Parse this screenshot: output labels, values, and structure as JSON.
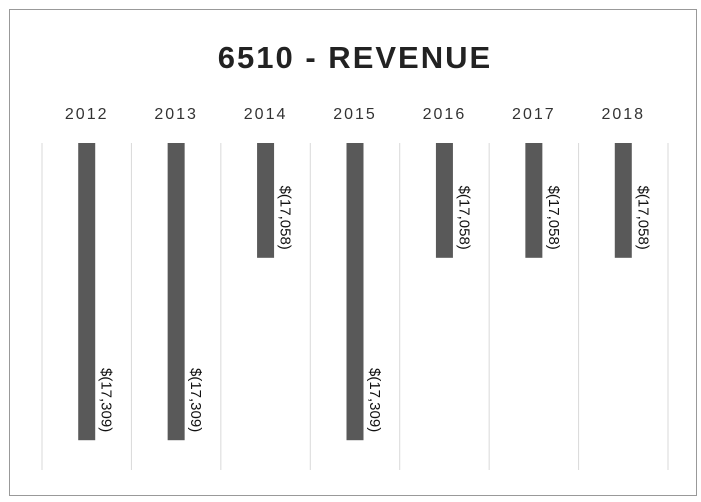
{
  "chart_data": {
    "type": "bar",
    "title": "6510 - REVENUE",
    "categories": [
      "2012",
      "2013",
      "2014",
      "2015",
      "2016",
      "2017",
      "2018"
    ],
    "values": [
      -17309,
      -17309,
      -17058,
      -17309,
      -17058,
      -17058,
      -17058
    ],
    "value_labels": [
      "$(17,309)",
      "$(17,309)",
      "$(17,058)",
      "$(17,309)",
      "$(17,058)",
      "$(17,058)",
      "$(17,058)"
    ],
    "color": "#595959",
    "ylim": [
      -17350,
      -16900
    ]
  }
}
